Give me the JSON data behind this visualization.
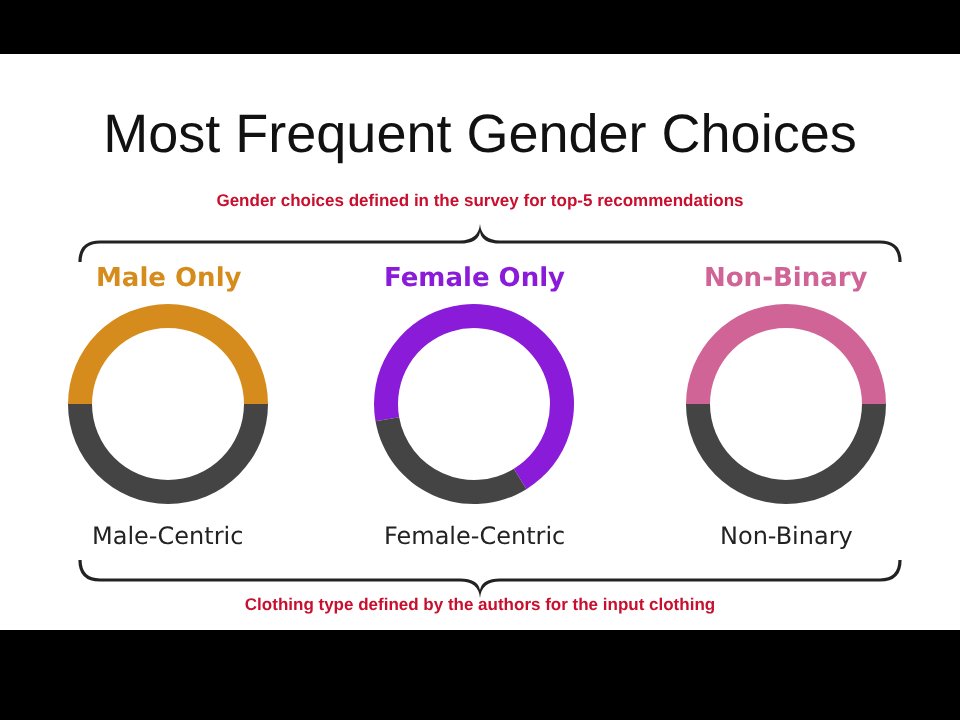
{
  "chart_data": [
    {
      "type": "donut",
      "title": "Most Frequent Gender Choices",
      "subtitle": "Gender choices defined in the survey for top-5 recommendations",
      "annotations": [
        "Clothing type defined by the authors for the input clothing"
      ],
      "categories": [
        "Male Only",
        null
      ],
      "values": [
        50,
        50
      ],
      "colors": [
        "#d68c1c",
        "#444444"
      ],
      "xlabel": "Male-Centric"
    },
    {
      "type": "donut",
      "categories": [
        "Female Only",
        null
      ],
      "values": [
        69,
        31
      ],
      "colors": [
        "#8a1bd8",
        "#444444"
      ],
      "xlabel": "Female-Centric"
    },
    {
      "type": "donut",
      "categories": [
        "Non-Binary",
        null
      ],
      "values": [
        50,
        50
      ],
      "colors": [
        "#d06496",
        "#444444"
      ],
      "xlabel": "Non-Binary"
    }
  ]
}
